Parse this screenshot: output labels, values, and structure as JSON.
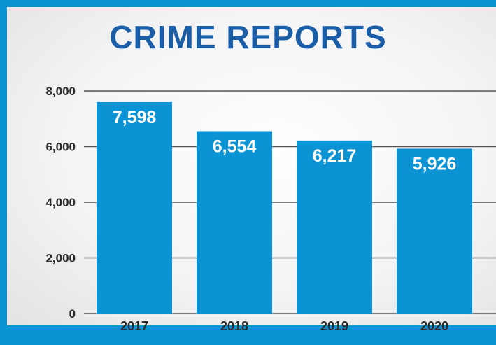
{
  "title": "CRIME REPORTS",
  "colors": {
    "accent": "#1a5ea8",
    "bar": "#0b93d3",
    "frame": "#0b93d3",
    "grid": "#555555",
    "bar_label": "#ffffff",
    "axis_text": "#2b2b2b"
  },
  "chart_data": {
    "type": "bar",
    "title": "CRIME REPORTS",
    "xlabel": "",
    "ylabel": "",
    "categories": [
      "2017",
      "2018",
      "2019",
      "2020"
    ],
    "values": [
      7598,
      6554,
      6217,
      5926
    ],
    "value_labels": [
      "7,598",
      "6,554",
      "6,217",
      "5,926"
    ],
    "yticks": [
      0,
      2000,
      4000,
      6000,
      8000
    ],
    "ytick_labels": [
      "0",
      "2,000",
      "4,000",
      "6,000",
      "8,000"
    ],
    "ylim": [
      0,
      8000
    ],
    "grid": true,
    "legend": false
  }
}
